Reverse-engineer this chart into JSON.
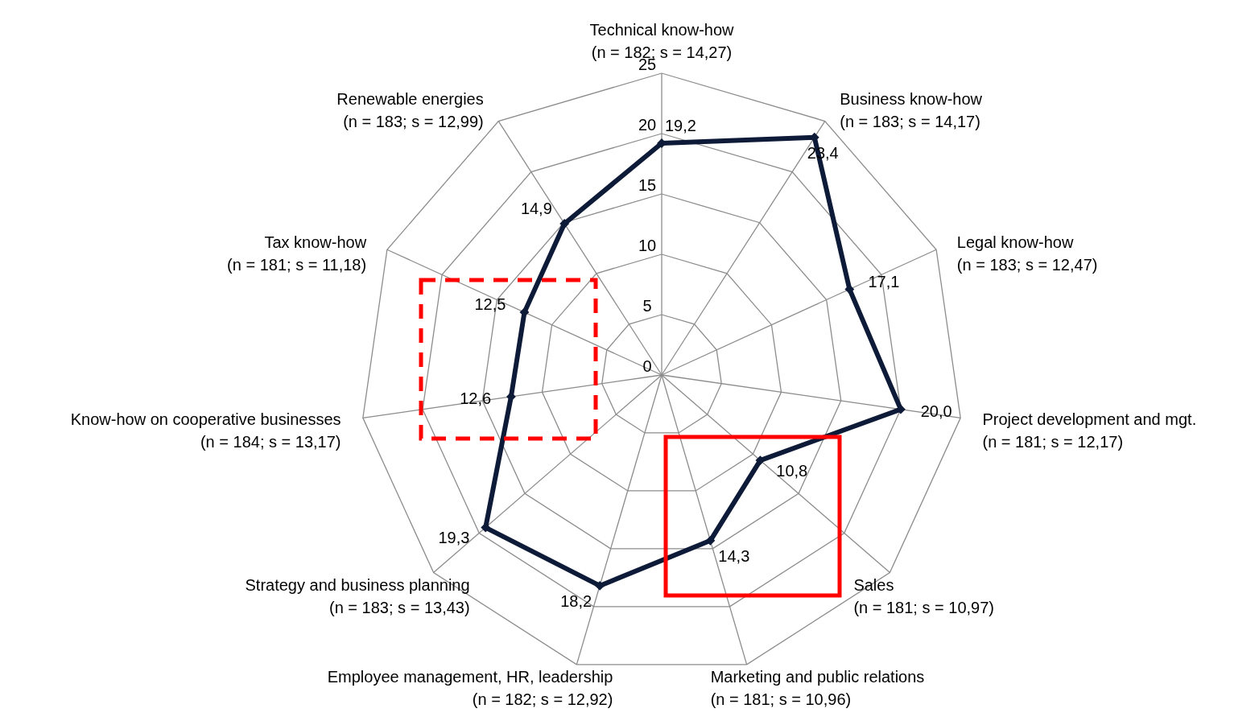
{
  "chart_data": {
    "type": "radar",
    "categories": [
      "Technical know-how\n(n = 182; s = 14,27)",
      "Business know-how\n(n = 183; s = 14,17)",
      "Legal know-how\n(n = 183; s = 12,47)",
      "Project development and mgt.\n(n = 181; s = 12,17)",
      "Sales\n(n = 181; s = 10,97)",
      "Marketing and public relations\n(n = 181; s = 10,96)",
      "Employee management, HR, leadership\n(n = 182; s = 12,92)",
      "Strategy and business planning\n(n = 183; s = 13,43)",
      "Know-how on cooperative businesses\n(n = 184; s = 13,17)",
      "Tax know-how\n(n = 181; s = 11,18)",
      "Renewable energies\n(n = 183; s = 12,99)"
    ],
    "series": [
      {
        "color": "#0e1b38",
        "values": [
          19.2,
          23.4,
          17.1,
          20.0,
          10.8,
          14.3,
          18.2,
          19.3,
          12.6,
          12.5,
          14.9
        ],
        "value_labels": [
          "19,2",
          "23,4",
          "17,1",
          "20,0",
          "10,8",
          "14,3",
          "18,2",
          "19,3",
          "12,6",
          "12,5",
          "14,9"
        ]
      }
    ],
    "ylim": [
      0,
      25
    ],
    "yticks": [
      0,
      5,
      10,
      15,
      20,
      25
    ],
    "grid": true,
    "marker": "diamond"
  }
}
